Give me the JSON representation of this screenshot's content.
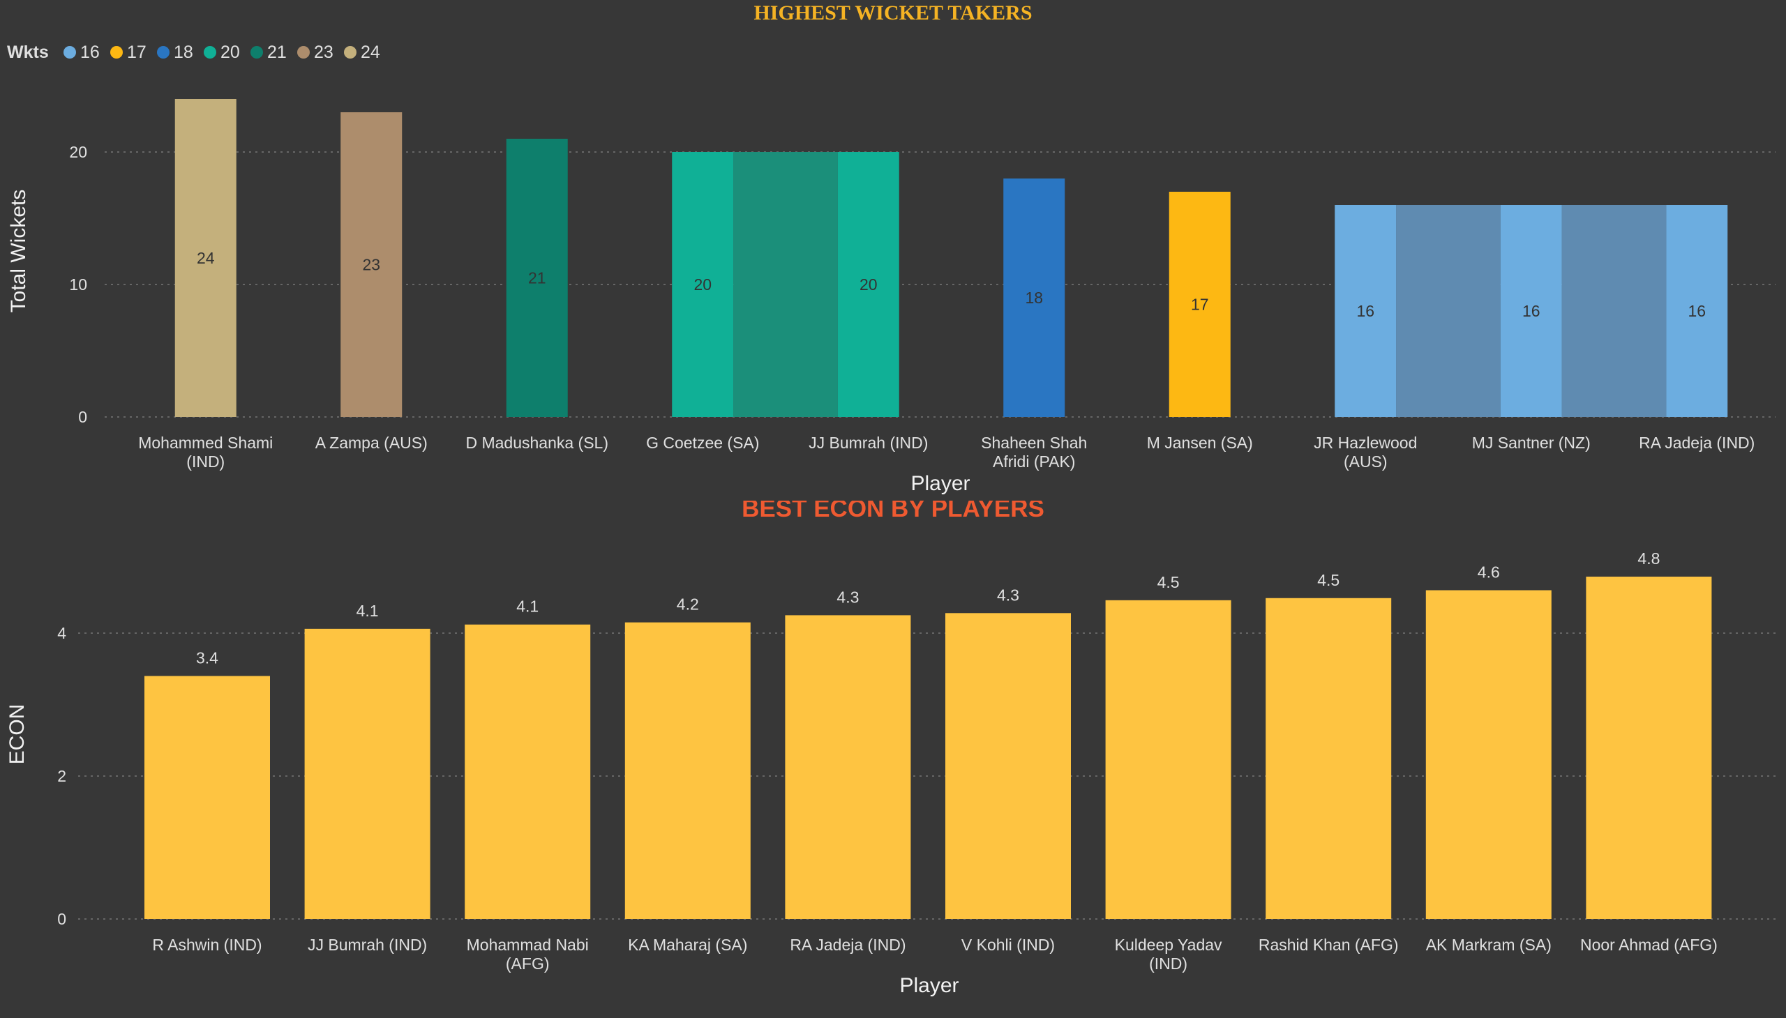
{
  "chart_data": [
    {
      "type": "bar",
      "title": "HIGHEST WICKET TAKERS",
      "xlabel": "Player",
      "ylabel": "Total Wickets",
      "ylim": [
        0,
        24
      ],
      "yticks": [
        "0",
        "10",
        "20"
      ],
      "grid": true,
      "legend": {
        "title": "Wkts",
        "placement": "top-left",
        "entries": [
          {
            "label": "16",
            "color": "#6cade0"
          },
          {
            "label": "17",
            "color": "#fdb813"
          },
          {
            "label": "18",
            "color": "#2a76c2"
          },
          {
            "label": "20",
            "color": "#10b096"
          },
          {
            "label": "21",
            "color": "#0e7f6c"
          },
          {
            "label": "23",
            "color": "#ad8d6c"
          },
          {
            "label": "24",
            "color": "#c4b07c"
          }
        ]
      },
      "categories": [
        [
          "Mohammed Shami",
          "(IND)"
        ],
        [
          "A Zampa (AUS)"
        ],
        [
          "D Madushanka (SL)"
        ],
        [
          "G Coetzee (SA)"
        ],
        [
          "JJ Bumrah (IND)"
        ],
        [
          "Shaheen Shah",
          "Afridi (PAK)"
        ],
        [
          "M Jansen (SA)"
        ],
        [
          "JR Hazlewood",
          "(AUS)"
        ],
        [
          "MJ Santner (NZ)"
        ],
        [
          "RA Jadeja (IND)"
        ]
      ],
      "values": [
        24,
        23,
        21,
        20,
        20,
        18,
        17,
        16,
        16,
        16
      ],
      "data_labels": [
        "24",
        "23",
        "21",
        "20",
        "20",
        "18",
        "17",
        "16",
        "16",
        "16"
      ],
      "colors": [
        "#c4b07c",
        "#ad8d6c",
        "#0e7f6c",
        "#10b096",
        "#10b096",
        "#2a76c2",
        "#fdb813",
        "#6cade0",
        "#6cade0",
        "#6cade0"
      ],
      "band_colors": [
        "#1b8f7a",
        "#5f8bb1"
      ]
    },
    {
      "type": "bar",
      "title": "BEST ECON BY PLAYERS",
      "xlabel": "Player",
      "ylabel": "ECON",
      "ylim": [
        0,
        5
      ],
      "yticks": [
        "0",
        "2",
        "4"
      ],
      "grid": true,
      "color": "#fec441",
      "categories": [
        [
          "R Ashwin (IND)"
        ],
        [
          "JJ Bumrah (IND)"
        ],
        [
          "Mohammad Nabi",
          "(AFG)"
        ],
        [
          "KA Maharaj (SA)"
        ],
        [
          "RA Jadeja (IND)"
        ],
        [
          "V Kohli (IND)"
        ],
        [
          "Kuldeep Yadav",
          "(IND)"
        ],
        [
          "Rashid Khan (AFG)"
        ],
        [
          "AK Markram (SA)"
        ],
        [
          "Noor Ahmad (AFG)"
        ]
      ],
      "values": [
        3.4,
        4.06,
        4.12,
        4.15,
        4.25,
        4.28,
        4.46,
        4.49,
        4.6,
        4.79
      ],
      "data_labels": [
        "3.4",
        "4.1",
        "4.1",
        "4.2",
        "4.3",
        "4.3",
        "4.5",
        "4.5",
        "4.6",
        "4.8"
      ]
    }
  ]
}
